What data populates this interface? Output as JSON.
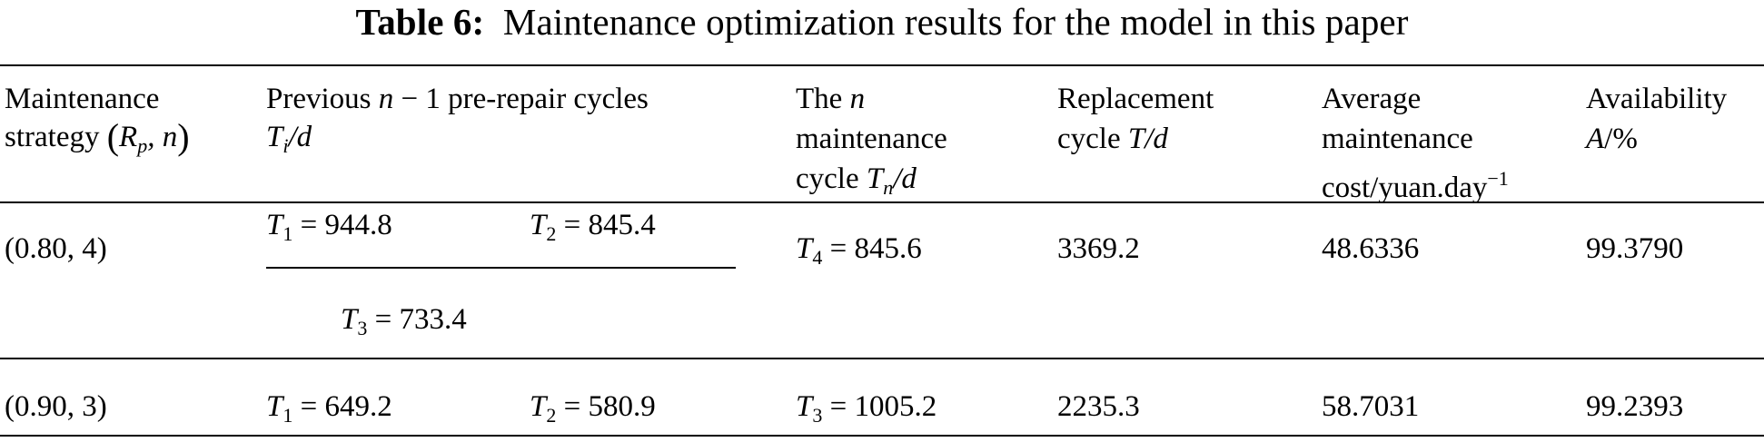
{
  "table": {
    "caption_label": "Table 6:",
    "caption_text": "Maintenance optimization results for the model in this paper",
    "headers": {
      "strategy_line1": "Maintenance",
      "strategy_line2": "strategy",
      "strategy_tuple": "R",
      "strategy_tuple_sub": "p",
      "strategy_tuple_rest": ", n",
      "previous_line1a": "Previous ",
      "previous_line1_n": "n",
      "previous_line1b": " − 1 pre-repair cycles",
      "previous_line2_T": "T",
      "previous_line2_sub": "i",
      "previous_line2_rest": "/d",
      "nth_line1a": "The ",
      "nth_line1_n": "n",
      "nth_line2": "maintenance",
      "nth_line3a": "cycle ",
      "nth_line3_T": "T",
      "nth_line3_sub": "n",
      "nth_line3_rest": "/d",
      "replacement_line1": "Replacement",
      "replacement_line2a": "cycle ",
      "replacement_line2_T": "T",
      "replacement_line2_rest": "/d",
      "cost_line1": "Average",
      "cost_line2": "maintenance",
      "cost_line3": "cost/yuan.day",
      "cost_line3_sup": "−1",
      "availability_line1": "Availability",
      "availability_line2_A": "A",
      "availability_line2_rest": "/%"
    },
    "rows": [
      {
        "strategy": "(0.80, 4)",
        "t1_sub": "1",
        "t1_val": " = 944.8",
        "t2_sub": "2",
        "t2_val": " = 845.4",
        "t3_sub": "3",
        "t3_val": " = 733.4",
        "tn_sub": "4",
        "tn_val": " = 845.6",
        "replacement": "3369.2",
        "cost": "48.6336",
        "availability": "99.3790"
      },
      {
        "strategy": "(0.90, 3)",
        "t1_sub": "1",
        "t1_val": " = 649.2",
        "t2_sub": "2",
        "t2_val": " = 580.9",
        "tn_sub": "3",
        "tn_val": " = 1005.2",
        "replacement": "2235.3",
        "cost": "58.7031",
        "availability": "99.2393"
      }
    ]
  }
}
